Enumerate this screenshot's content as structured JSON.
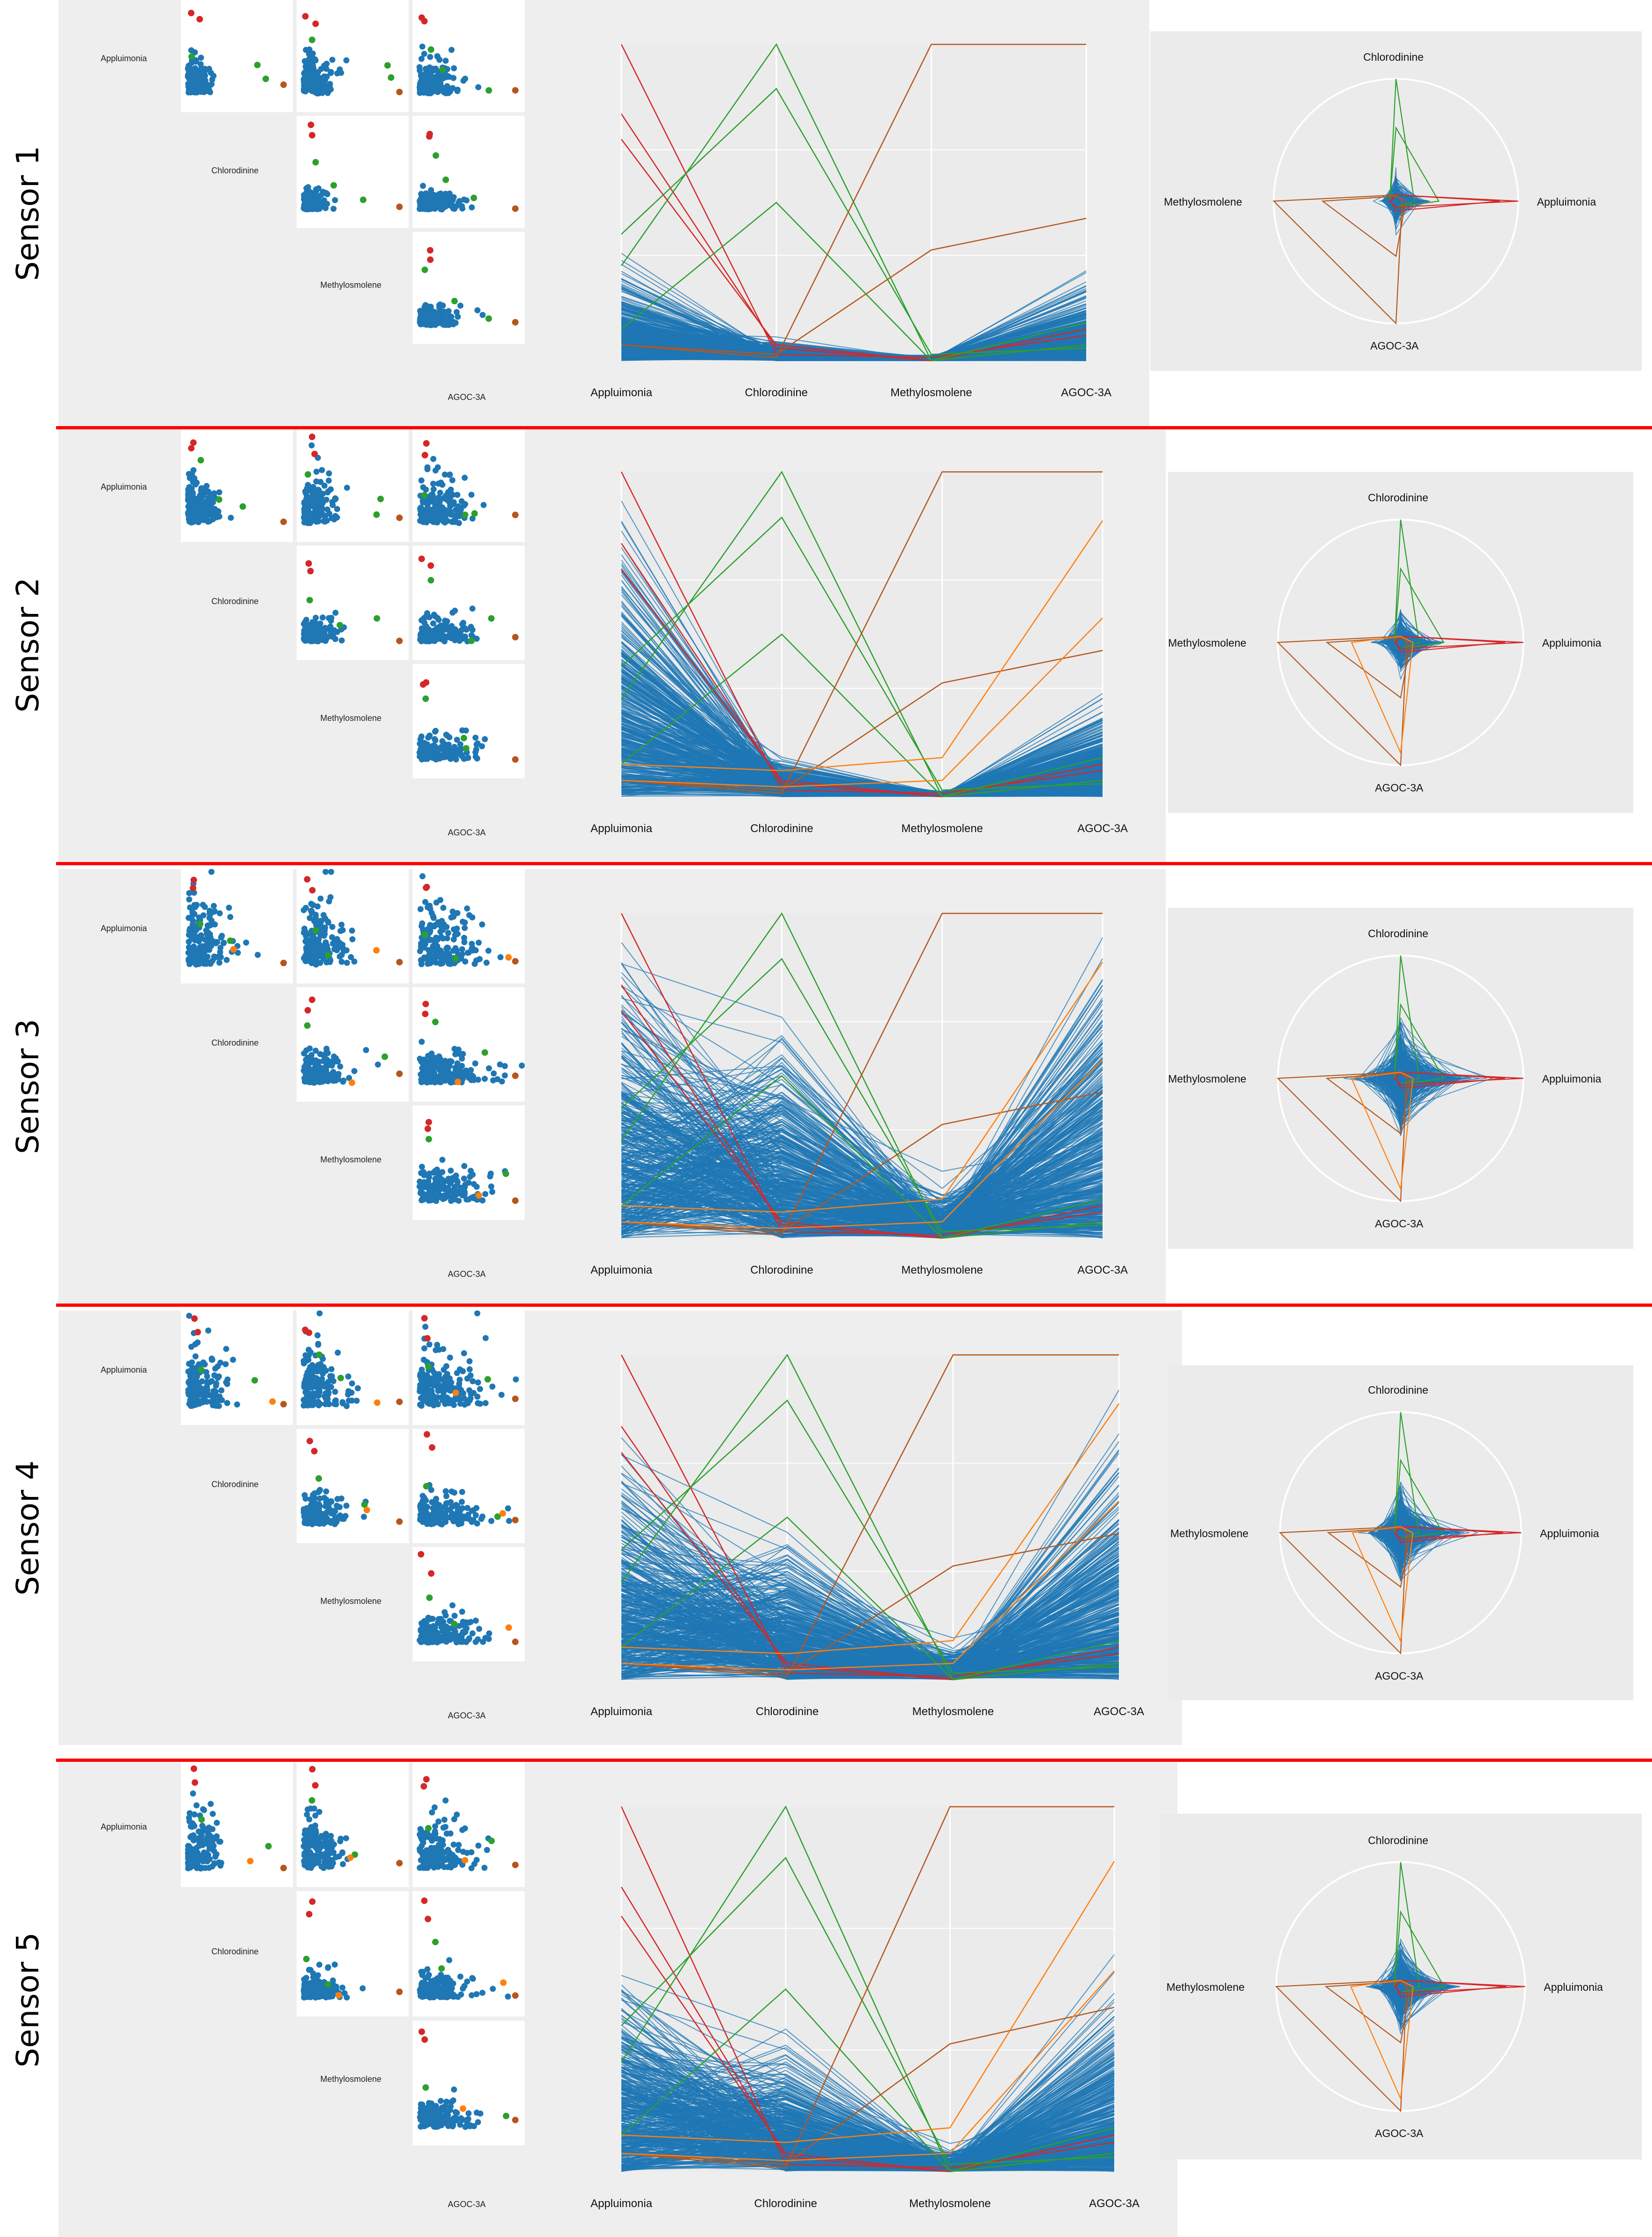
{
  "variables": [
    "Appluimonia",
    "Chlorodinine",
    "Methylosmolene",
    "AGOC-3A"
  ],
  "colors": {
    "blue": "#1f77b4",
    "green": "#2ca02c",
    "red": "#d62728",
    "brown": "#b5561c",
    "orange": "#ff7f0e",
    "separator": "#ff0000",
    "panel_bg": "#eeeeee",
    "grid": "#ffffff"
  },
  "sensors": [
    {
      "label": "Sensor 1"
    },
    {
      "label": "Sensor 2"
    },
    {
      "label": "Sensor 3"
    },
    {
      "label": "Sensor 4"
    },
    {
      "label": "Sensor 5"
    }
  ],
  "chart_data": [
    {
      "type": "scatter",
      "subtype": "scatter-matrix",
      "sensor": "Sensor 1",
      "variables": [
        "Appluimonia",
        "Chlorodinine",
        "Methylosmolene",
        "AGOC-3A"
      ],
      "series": [
        {
          "color": "blue"
        },
        {
          "color": "green"
        },
        {
          "color": "red"
        },
        {
          "color": "brown"
        }
      ]
    },
    {
      "type": "line",
      "subtype": "parallel-coordinates",
      "sensor": "Sensor 1",
      "axes": [
        "Appluimonia",
        "Chlorodinine",
        "Methylosmolene",
        "AGOC-3A"
      ],
      "series": [
        {
          "color": "blue"
        },
        {
          "color": "green"
        },
        {
          "color": "red"
        },
        {
          "color": "brown"
        }
      ]
    },
    {
      "type": "line",
      "subtype": "radar",
      "sensor": "Sensor 1",
      "axes": [
        "Chlorodinine",
        "Appluimonia",
        "AGOC-3A",
        "Methylosmolene"
      ],
      "series": [
        {
          "color": "blue"
        },
        {
          "color": "green"
        },
        {
          "color": "red"
        },
        {
          "color": "brown"
        }
      ]
    },
    {
      "type": "scatter",
      "subtype": "scatter-matrix",
      "sensor": "Sensor 2",
      "variables": [
        "Appluimonia",
        "Chlorodinine",
        "Methylosmolene",
        "AGOC-3A"
      ],
      "series": [
        {
          "color": "blue"
        },
        {
          "color": "green"
        },
        {
          "color": "red"
        },
        {
          "color": "brown"
        }
      ]
    },
    {
      "type": "line",
      "subtype": "parallel-coordinates",
      "sensor": "Sensor 2",
      "axes": [
        "Appluimonia",
        "Chlorodinine",
        "Methylosmolene",
        "AGOC-3A"
      ],
      "series": [
        {
          "color": "blue"
        },
        {
          "color": "green"
        },
        {
          "color": "red"
        },
        {
          "color": "brown"
        },
        {
          "color": "orange"
        }
      ]
    },
    {
      "type": "line",
      "subtype": "radar",
      "sensor": "Sensor 2",
      "axes": [
        "Chlorodinine",
        "Appluimonia",
        "AGOC-3A",
        "Methylosmolene"
      ],
      "series": [
        {
          "color": "blue"
        },
        {
          "color": "green"
        },
        {
          "color": "red"
        },
        {
          "color": "brown"
        }
      ]
    },
    {
      "type": "scatter",
      "subtype": "scatter-matrix",
      "sensor": "Sensor 3",
      "variables": [
        "Appluimonia",
        "Chlorodinine",
        "Methylosmolene",
        "AGOC-3A"
      ],
      "series": [
        {
          "color": "blue"
        },
        {
          "color": "green"
        },
        {
          "color": "red"
        },
        {
          "color": "orange"
        }
      ]
    },
    {
      "type": "line",
      "subtype": "parallel-coordinates",
      "sensor": "Sensor 3",
      "axes": [
        "Appluimonia",
        "Chlorodinine",
        "Methylosmolene",
        "AGOC-3A"
      ],
      "series": [
        {
          "color": "blue"
        },
        {
          "color": "green"
        },
        {
          "color": "red"
        },
        {
          "color": "brown"
        },
        {
          "color": "orange"
        }
      ]
    },
    {
      "type": "line",
      "subtype": "radar",
      "sensor": "Sensor 3",
      "axes": [
        "Chlorodinine",
        "Appluimonia",
        "AGOC-3A",
        "Methylosmolene"
      ],
      "series": [
        {
          "color": "blue"
        },
        {
          "color": "green"
        },
        {
          "color": "red"
        },
        {
          "color": "brown"
        },
        {
          "color": "orange"
        }
      ]
    },
    {
      "type": "scatter",
      "subtype": "scatter-matrix",
      "sensor": "Sensor 4",
      "variables": [
        "Appluimonia",
        "Chlorodinine",
        "Methylosmolene",
        "AGOC-3A"
      ],
      "series": [
        {
          "color": "blue"
        },
        {
          "color": "green"
        },
        {
          "color": "red"
        },
        {
          "color": "brown"
        },
        {
          "color": "orange"
        }
      ]
    },
    {
      "type": "line",
      "subtype": "parallel-coordinates",
      "sensor": "Sensor 4",
      "axes": [
        "Appluimonia",
        "Chlorodinine",
        "Methylosmolene",
        "AGOC-3A"
      ],
      "series": [
        {
          "color": "blue"
        },
        {
          "color": "green"
        },
        {
          "color": "red"
        },
        {
          "color": "brown"
        },
        {
          "color": "orange"
        }
      ]
    },
    {
      "type": "line",
      "subtype": "radar",
      "sensor": "Sensor 4",
      "axes": [
        "Chlorodinine",
        "Appluimonia",
        "AGOC-3A",
        "Methylosmolene"
      ],
      "series": [
        {
          "color": "blue"
        },
        {
          "color": "green"
        },
        {
          "color": "red"
        },
        {
          "color": "brown"
        },
        {
          "color": "orange"
        }
      ]
    },
    {
      "type": "scatter",
      "subtype": "scatter-matrix",
      "sensor": "Sensor 5",
      "variables": [
        "Appluimonia",
        "Chlorodinine",
        "Methylosmolene",
        "AGOC-3A"
      ],
      "series": [
        {
          "color": "blue"
        },
        {
          "color": "green"
        },
        {
          "color": "red"
        },
        {
          "color": "brown"
        },
        {
          "color": "orange"
        }
      ]
    },
    {
      "type": "line",
      "subtype": "parallel-coordinates",
      "sensor": "Sensor 5",
      "axes": [
        "Appluimonia",
        "Chlorodinine",
        "Methylosmolene",
        "AGOC-3A"
      ],
      "series": [
        {
          "color": "blue"
        },
        {
          "color": "green"
        },
        {
          "color": "red"
        },
        {
          "color": "brown"
        },
        {
          "color": "orange"
        }
      ]
    },
    {
      "type": "line",
      "subtype": "radar",
      "sensor": "Sensor 5",
      "axes": [
        "Chlorodinine",
        "Appluimonia",
        "AGOC-3A",
        "Methylosmolene"
      ],
      "series": [
        {
          "color": "blue"
        },
        {
          "color": "green"
        },
        {
          "color": "red"
        },
        {
          "color": "brown"
        },
        {
          "color": "orange"
        }
      ]
    }
  ]
}
